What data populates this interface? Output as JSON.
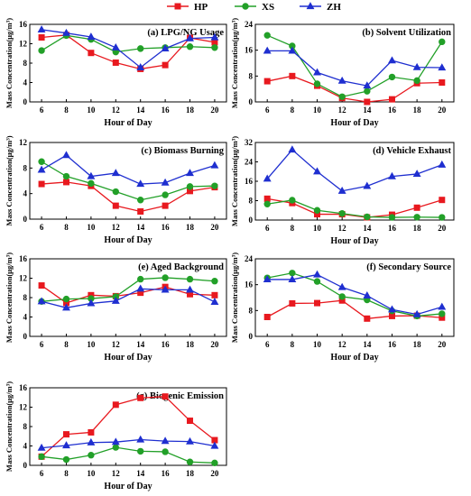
{
  "legend": [
    {
      "name": "HP",
      "color": "#e8191f",
      "marker": "square"
    },
    {
      "name": "XS",
      "color": "#22a028",
      "marker": "circle"
    },
    {
      "name": "ZH",
      "color": "#1f2fd0",
      "marker": "triangle"
    }
  ],
  "chart_data": [
    {
      "type": "line",
      "title": "(a) LPG/NG Usage",
      "xlabel": "Hour of Day",
      "ylabel": "Mass Concentration(μg/m³)",
      "x": [
        6,
        8,
        10,
        12,
        14,
        16,
        18,
        20
      ],
      "xticks": [
        "6",
        "8",
        "10",
        "12",
        "14",
        "16",
        "18",
        "20"
      ],
      "yticks": [
        "0",
        "4",
        "8",
        "12",
        "16"
      ],
      "ylim": [
        0,
        16
      ],
      "series": [
        {
          "name": "HP",
          "values": [
            13.3,
            13.8,
            10.1,
            8.1,
            6.8,
            7.6,
            13.2,
            12.3
          ]
        },
        {
          "name": "XS",
          "values": [
            10.6,
            13.7,
            12.9,
            10.3,
            11.0,
            11.2,
            11.4,
            11.2
          ]
        },
        {
          "name": "ZH",
          "values": [
            14.9,
            14.2,
            13.4,
            11.2,
            7.1,
            11.0,
            13.1,
            13.3
          ]
        }
      ]
    },
    {
      "type": "line",
      "title": "(b) Solvent Utilization",
      "xlabel": "Hour of Day",
      "ylabel": "Mass Concentration(μg/m³)",
      "x": [
        6,
        8,
        10,
        12,
        14,
        16,
        18,
        20
      ],
      "xticks": [
        "6",
        "8",
        "10",
        "12",
        "14",
        "16",
        "18",
        "20"
      ],
      "yticks": [
        "0",
        "8",
        "16",
        "24"
      ],
      "ylim": [
        0,
        24
      ],
      "series": [
        {
          "name": "HP",
          "values": [
            6.4,
            8.0,
            5.0,
            1.2,
            0.0,
            0.8,
            5.8,
            6.0
          ]
        },
        {
          "name": "XS",
          "values": [
            20.6,
            17.3,
            5.6,
            1.6,
            3.3,
            7.7,
            6.6,
            18.6
          ]
        },
        {
          "name": "ZH",
          "values": [
            15.8,
            15.8,
            9.1,
            6.5,
            5.0,
            12.8,
            10.7,
            10.6
          ]
        }
      ]
    },
    {
      "type": "line",
      "title": "(c) Biomass Burning",
      "xlabel": "Hour of Day",
      "ylabel": "Mass Concentration(μg/m³)",
      "x": [
        6,
        8,
        10,
        12,
        14,
        16,
        18,
        20
      ],
      "xticks": [
        "6",
        "8",
        "10",
        "12",
        "14",
        "16",
        "18",
        "20"
      ],
      "yticks": [
        "0",
        "4",
        "8",
        "12"
      ],
      "ylim": [
        0,
        12
      ],
      "series": [
        {
          "name": "HP",
          "values": [
            5.5,
            5.8,
            5.2,
            2.1,
            1.2,
            2.1,
            4.4,
            5.0
          ]
        },
        {
          "name": "XS",
          "values": [
            9.0,
            6.7,
            5.6,
            4.3,
            3.0,
            3.8,
            5.1,
            5.2
          ]
        },
        {
          "name": "ZH",
          "values": [
            7.7,
            10.0,
            6.7,
            7.2,
            5.5,
            5.7,
            7.2,
            8.4
          ]
        }
      ]
    },
    {
      "type": "line",
      "title": "(d) Vehicle Exhaust",
      "xlabel": "Hour of Day",
      "ylabel": "Mass Concentration(μg/m³)",
      "x": [
        6,
        8,
        10,
        12,
        14,
        16,
        18,
        20
      ],
      "xticks": [
        "6",
        "8",
        "10",
        "12",
        "14",
        "16",
        "18",
        "20"
      ],
      "yticks": [
        "0",
        "8",
        "16",
        "24",
        "32"
      ],
      "ylim": [
        0,
        32
      ],
      "series": [
        {
          "name": "HP",
          "values": [
            8.8,
            7.0,
            2.4,
            2.4,
            1.1,
            2.2,
            5.1,
            8.3
          ]
        },
        {
          "name": "XS",
          "values": [
            6.6,
            8.2,
            4.0,
            2.7,
            1.3,
            1.1,
            1.2,
            1.1
          ]
        },
        {
          "name": "ZH",
          "values": [
            17.0,
            29.0,
            20.0,
            12.0,
            14.0,
            18.0,
            19.0,
            22.8
          ]
        }
      ]
    },
    {
      "type": "line",
      "title": "(e) Aged Background",
      "xlabel": "Hour of Day",
      "ylabel": "Mass Concentration(μg/m³)",
      "x": [
        6,
        8,
        10,
        12,
        14,
        16,
        18,
        20
      ],
      "xticks": [
        "6",
        "8",
        "10",
        "12",
        "14",
        "16",
        "18",
        "20"
      ],
      "yticks": [
        "0",
        "4",
        "8",
        "12",
        "16"
      ],
      "ylim": [
        0,
        16
      ],
      "series": [
        {
          "name": "HP",
          "values": [
            10.5,
            6.9,
            8.5,
            8.3,
            9.0,
            10.2,
            8.7,
            8.5
          ]
        },
        {
          "name": "XS",
          "values": [
            7.2,
            7.7,
            7.8,
            8.2,
            11.8,
            12.1,
            11.8,
            11.4
          ]
        },
        {
          "name": "ZH",
          "values": [
            7.2,
            5.9,
            6.8,
            7.3,
            9.8,
            9.6,
            9.6,
            7.1
          ]
        }
      ]
    },
    {
      "type": "line",
      "title": "(f) Secondary Source",
      "xlabel": "Hour of Day",
      "ylabel": "Mass Concentration(μg/m³)",
      "x": [
        6,
        8,
        10,
        12,
        14,
        16,
        18,
        20
      ],
      "xticks": [
        "6",
        "8",
        "10",
        "12",
        "14",
        "16",
        "18",
        "20"
      ],
      "yticks": [
        "0",
        "8",
        "16",
        "24"
      ],
      "ylim": [
        0,
        24
      ],
      "series": [
        {
          "name": "HP",
          "values": [
            6.0,
            10.2,
            10.3,
            11.1,
            5.5,
            6.3,
            6.4,
            5.8
          ]
        },
        {
          "name": "XS",
          "values": [
            18.1,
            19.6,
            17.0,
            12.3,
            11.3,
            7.9,
            6.3,
            7.0
          ]
        },
        {
          "name": "ZH",
          "values": [
            17.6,
            17.6,
            19.1,
            15.2,
            12.6,
            8.3,
            6.8,
            9.1
          ]
        }
      ]
    },
    {
      "type": "line",
      "title": "(g) Biogenic Emission",
      "xlabel": "Hour of Day",
      "ylabel": "Mass Concentration(μg/m³)",
      "x": [
        6,
        8,
        10,
        12,
        14,
        16,
        18,
        20
      ],
      "xticks": [
        "6",
        "8",
        "10",
        "12",
        "14",
        "16",
        "18",
        "20"
      ],
      "yticks": [
        "0",
        "4",
        "8",
        "12",
        "16"
      ],
      "ylim": [
        0,
        16
      ],
      "series": [
        {
          "name": "HP",
          "values": [
            1.8,
            6.4,
            6.8,
            12.5,
            13.9,
            14.2,
            9.2,
            5.2
          ]
        },
        {
          "name": "XS",
          "values": [
            1.8,
            1.2,
            2.1,
            3.7,
            2.9,
            2.8,
            0.7,
            0.5
          ]
        },
        {
          "name": "ZH",
          "values": [
            3.6,
            4.1,
            4.7,
            4.8,
            5.3,
            5.0,
            4.9,
            4.0
          ]
        }
      ]
    }
  ]
}
